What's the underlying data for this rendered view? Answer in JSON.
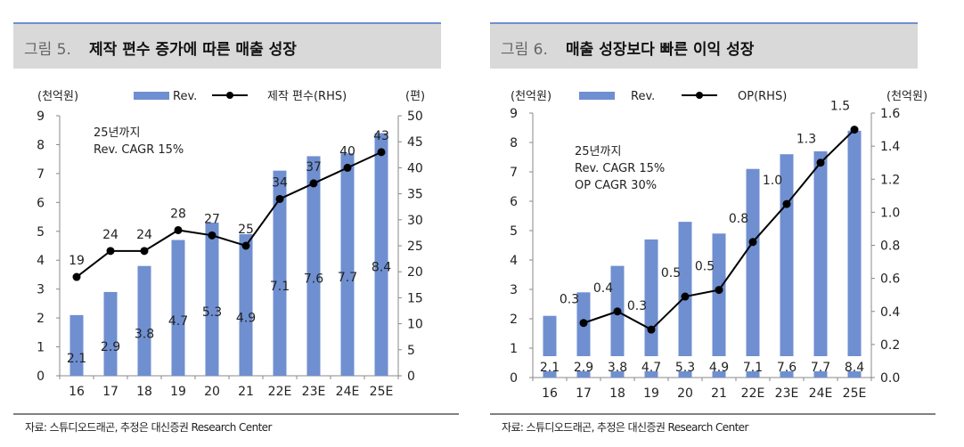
{
  "charts": [
    {
      "figure_label": "그림 5.",
      "title": "제작 편수 증가에 따른 매출 성장",
      "source": "자료: 스튜디오드래곤, 추정은 대신증권 Research Center"
    },
    {
      "figure_label": "그림 6.",
      "title": "매출 성장보다 빠른 이익 성장",
      "source": "자료: 스튜디오드래곤, 추정은 대신증권 Research Center"
    }
  ],
  "chart_data": [
    {
      "type": "bar+line",
      "categories": [
        "16",
        "17",
        "18",
        "19",
        "20",
        "21",
        "22E",
        "23E",
        "24E",
        "25E"
      ],
      "left_unit": "(천억원)",
      "right_unit": "(편)",
      "ylim": [
        0,
        9
      ],
      "yticks": [
        0,
        1,
        2,
        3,
        4,
        5,
        6,
        7,
        8,
        9
      ],
      "y2lim": [
        0,
        50
      ],
      "y2ticks": [
        0,
        5,
        10,
        15,
        20,
        25,
        30,
        35,
        40,
        45,
        50
      ],
      "annotation": [
        "25년까지",
        "Rev. CAGR 15%"
      ],
      "bar_color": "#6f8fd0",
      "line_color": "#000000",
      "legend": "top",
      "series": [
        {
          "name": "Rev.",
          "axis": "left",
          "values": [
            2.1,
            2.9,
            3.8,
            4.7,
            5.3,
            4.9,
            7.1,
            7.6,
            7.7,
            8.4
          ],
          "labels": [
            "2.1",
            "2.9",
            "3.8",
            "4.7",
            "5.3",
            "4.9",
            "7.1",
            "7.6",
            "7.7",
            "8.4"
          ]
        },
        {
          "name": "제작 편수(RHS)",
          "axis": "right",
          "values": [
            19,
            24,
            24,
            28,
            27,
            25,
            34,
            37,
            40,
            43
          ],
          "labels": [
            "19",
            "24",
            "24",
            "28",
            "27",
            "25",
            "34",
            "37",
            "40",
            "43"
          ]
        }
      ]
    },
    {
      "type": "bar+line",
      "categories": [
        "16",
        "17",
        "18",
        "19",
        "20",
        "21",
        "22E",
        "23E",
        "24E",
        "25E"
      ],
      "left_unit": "(천억원)",
      "right_unit": "(천억원)",
      "ylim": [
        0,
        9
      ],
      "yticks": [
        0,
        1,
        2,
        3,
        4,
        5,
        6,
        7,
        8,
        9
      ],
      "y2lim": [
        0,
        1.6
      ],
      "y2ticks": [
        "0.0",
        "0.2",
        "0.4",
        "0.6",
        "0.8",
        "1.0",
        "1.2",
        "1.4",
        "1.6"
      ],
      "annotation": [
        "25년까지",
        "Rev. CAGR 15%",
        "OP CAGR 30%"
      ],
      "bar_color": "#6f8fd0",
      "line_color": "#000000",
      "legend": "top",
      "series": [
        {
          "name": "Rev.",
          "axis": "left",
          "values": [
            2.1,
            2.9,
            3.8,
            4.7,
            5.3,
            4.9,
            7.1,
            7.6,
            7.7,
            8.4
          ],
          "labels": [
            "2.1",
            "2.9",
            "3.8",
            "4.7",
            "5.3",
            "4.9",
            "7.1",
            "7.6",
            "7.7",
            "8.4"
          ]
        },
        {
          "name": "OP(RHS)",
          "axis": "right",
          "values": [
            null,
            0.33,
            0.4,
            0.29,
            0.49,
            0.53,
            0.82,
            1.05,
            1.3,
            1.5
          ],
          "labels": [
            "",
            "0.3",
            "0.4",
            "0.3",
            "0.5",
            "0.5",
            "0.8",
            "1.0",
            "1.3",
            "1.5"
          ]
        }
      ]
    }
  ]
}
